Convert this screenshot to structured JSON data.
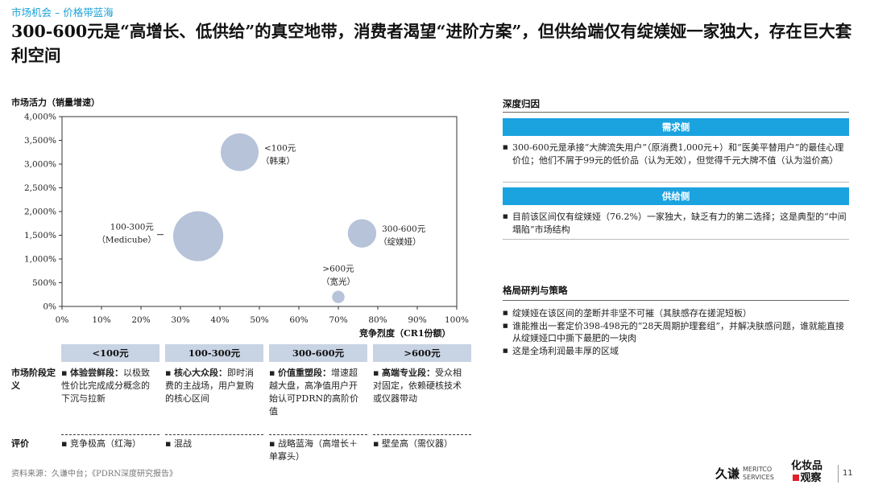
{
  "section_label": "市场机会 – 价格带蓝海",
  "title": "300-600元是“高增长、低供给”的真空地带，消费者渴望“进阶方案”，但供给端仅有绽媄娅一家独大，存在巨大套利空间",
  "chart_data": {
    "type": "bubble",
    "xlabel": "竞争烈度（CR1份额）",
    "ylabel": "市场活力（销量增速）",
    "xlim": [
      0,
      100
    ],
    "ylim": [
      0,
      4000
    ],
    "xticks": [
      "0%",
      "10%",
      "20%",
      "30%",
      "40%",
      "50%",
      "60%",
      "70%",
      "80%",
      "90%",
      "100%"
    ],
    "yticks": [
      "0%",
      "500%",
      "1,000%",
      "1,500%",
      "2,000%",
      "2,500%",
      "3,000%",
      "3,500%",
      "4,000%"
    ],
    "grid": false,
    "bubbles": [
      {
        "label": "<100元",
        "sublabel": "（韩束）",
        "x": 45,
        "y": 3250,
        "size": 3.7,
        "color": "#b6c3d9",
        "label_side": "right"
      },
      {
        "label": "100-300元",
        "sublabel": "（Medicube）",
        "x": 34.5,
        "y": 1480,
        "size": 6.5,
        "color": "#b6c3d9",
        "label_side": "left"
      },
      {
        "label": "300-600元",
        "sublabel": "（绽媄娅）",
        "x": 76,
        "y": 1540,
        "size": 2.1,
        "color": "#b6c3d9",
        "label_side": "right"
      },
      {
        "label": ">600元",
        "sublabel": "（宽光）",
        "x": 70,
        "y": 200,
        "size": 0.4,
        "color": "#b6c3d9",
        "label_side": "top"
      }
    ]
  },
  "segments": [
    {
      "name": "<100元",
      "def_bold": "体验尝鲜段：",
      "def_text": "以极致性价比完成成分概念的下沉与拉新",
      "eval": "竞争极高（红海）"
    },
    {
      "name": "100-300元",
      "def_bold": "核心大众段：",
      "def_text": "即时消费的主战场，用户复购的核心区间",
      "eval": "混战"
    },
    {
      "name": "300-600元",
      "def_bold": "价值重塑段：",
      "def_text": "增速超越大盘，高净值用户开始认可PDRN的高阶价值",
      "eval": "战略蓝海（高增长＋单寡头）"
    },
    {
      "name": ">600元",
      "def_bold": "高端专业段：",
      "def_text": "受众相对固定，依赖硬核技术或仪器带动",
      "eval": "壁垒高（需仪器）"
    }
  ],
  "row_labels": {
    "definition": "市场阶段定义",
    "evaluation": "评价"
  },
  "source": "资料来源：久谦中台；《PDRN深度研究报告》",
  "panel": {
    "deep_title": "深度归因",
    "demand_title": "需求侧",
    "demand_items": [
      "300-600元是承接“大牌流失用户”（原消费1,000元+）和“医美平替用户”的最佳心理价位；他们不屑于99元的低价品（认为无效），但觉得千元大牌不值（认为溢价高）"
    ],
    "supply_title": "供给侧",
    "supply_items": [
      "目前该区间仅有绽媄娅（76.2%）一家独大，缺乏有力的第二选择；这是典型的“中间塌陷”市场结构"
    ],
    "strategy_title": "格局研判与策略",
    "strategy_items": [
      "绽媄娅在该区间的垄断并非坚不可摧（其肤感存在搓泥短板）",
      "谁能推出一套定价398-498元的“28天周期护理套组”，并解决肤感问题，谁就能直接从绽媄娅口中撕下最肥的一块肉",
      "这是全场利润最丰厚的区域"
    ]
  },
  "footer": {
    "logo_kq": "久谦",
    "logo_meritco_1": "MERITCO",
    "logo_meritco_2": "SERVICES",
    "logo_hzp_1": "化妆品",
    "logo_hzp_2": "观察",
    "page_number": "11"
  }
}
